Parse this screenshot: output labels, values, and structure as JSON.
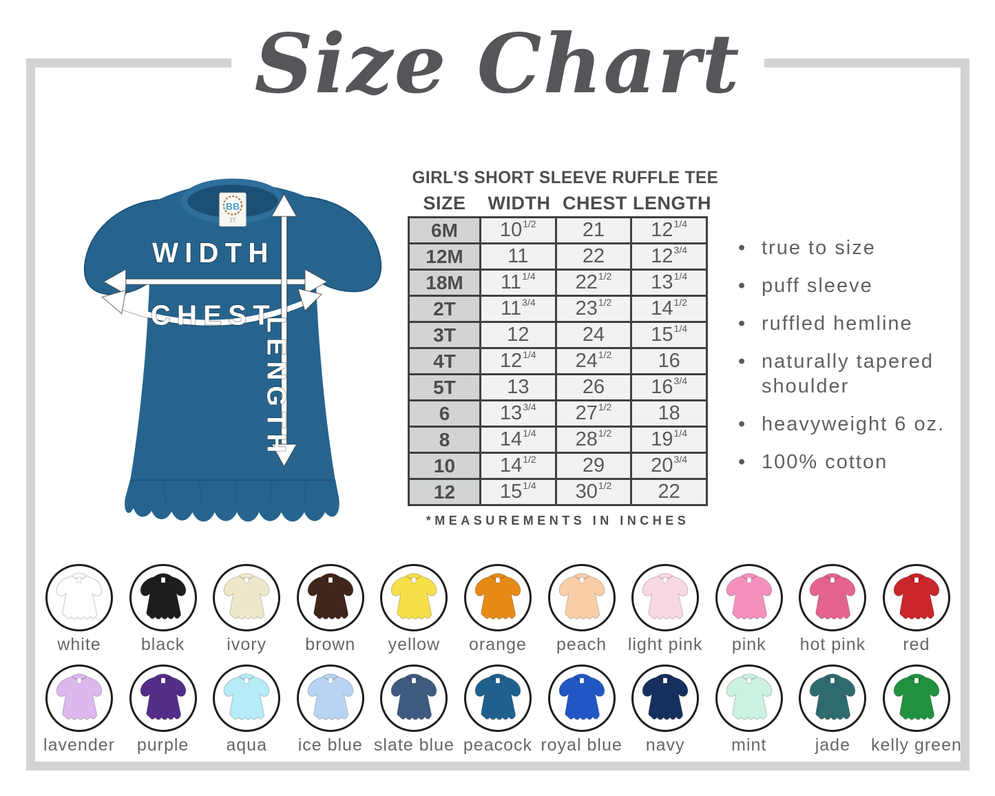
{
  "title": "Size Chart",
  "product": {
    "name": "GIRL'S SHORT SLEEVE RUFFLE TEE",
    "measurement_note": "*MEASUREMENTS IN INCHES",
    "diagram_labels": {
      "width": "WIDTH",
      "chest": "CHEST",
      "length": "LENGTH"
    },
    "neck_tag": {
      "logo": "BB",
      "size_label": "2T"
    }
  },
  "chart_data": {
    "type": "table",
    "title": "GIRL'S SHORT SLEEVE RUFFLE TEE",
    "columns": [
      "SIZE",
      "WIDTH",
      "CHEST",
      "LENGTH"
    ],
    "units": "inches",
    "rows": [
      {
        "size": "6M",
        "width": "10 1/2",
        "chest": "21",
        "length": "12 1/4"
      },
      {
        "size": "12M",
        "width": "11",
        "chest": "22",
        "length": "12 3/4"
      },
      {
        "size": "18M",
        "width": "11 1/4",
        "chest": "22 1/2",
        "length": "13 1/4"
      },
      {
        "size": "2T",
        "width": "11 3/4",
        "chest": "23 1/2",
        "length": "14 1/2"
      },
      {
        "size": "3T",
        "width": "12",
        "chest": "24",
        "length": "15 1/4"
      },
      {
        "size": "4T",
        "width": "12 1/4",
        "chest": "24 1/2",
        "length": "16"
      },
      {
        "size": "5T",
        "width": "13",
        "chest": "26",
        "length": "16 3/4"
      },
      {
        "size": "6",
        "width": "13 3/4",
        "chest": "27 1/2",
        "length": "18"
      },
      {
        "size": "8",
        "width": "14 1/4",
        "chest": "28 1/2",
        "length": "19 1/4"
      },
      {
        "size": "10",
        "width": "14 1/2",
        "chest": "29",
        "length": "20 3/4"
      },
      {
        "size": "12",
        "width": "15 1/4",
        "chest": "30 1/2",
        "length": "22"
      }
    ]
  },
  "features": [
    "true to size",
    "puff sleeve",
    "ruffled hemline",
    "naturally tapered shoulder",
    "heavyweight 6 oz.",
    "100% cotton"
  ],
  "swatches": {
    "row1": [
      {
        "name": "white",
        "hex": "#ffffff"
      },
      {
        "name": "black",
        "hex": "#1d1d1f"
      },
      {
        "name": "ivory",
        "hex": "#efe9cc"
      },
      {
        "name": "brown",
        "hex": "#40251b"
      },
      {
        "name": "yellow",
        "hex": "#f6e049"
      },
      {
        "name": "orange",
        "hex": "#e68a15"
      },
      {
        "name": "peach",
        "hex": "#f9cfa9"
      },
      {
        "name": "light pink",
        "hex": "#fad7e5"
      },
      {
        "name": "pink",
        "hex": "#f590bd"
      },
      {
        "name": "hot pink",
        "hex": "#e4638f"
      },
      {
        "name": "red",
        "hex": "#c9252b"
      }
    ],
    "row2": [
      {
        "name": "lavender",
        "hex": "#dcb8ee"
      },
      {
        "name": "purple",
        "hex": "#532d87"
      },
      {
        "name": "aqua",
        "hex": "#b5ecf7"
      },
      {
        "name": "ice blue",
        "hex": "#b8d4f2"
      },
      {
        "name": "slate blue",
        "hex": "#3e5a7e"
      },
      {
        "name": "peacock",
        "hex": "#20608d"
      },
      {
        "name": "royal blue",
        "hex": "#2157c4"
      },
      {
        "name": "navy",
        "hex": "#16305e"
      },
      {
        "name": "mint",
        "hex": "#ccf2e2"
      },
      {
        "name": "jade",
        "hex": "#2e6b6e"
      },
      {
        "name": "kelly green",
        "hex": "#20913f"
      }
    ]
  },
  "theme": {
    "shirt_blue": "#26648e",
    "shirt_shadow": "#1c4f74",
    "frame_gray": "#d2d3d5",
    "text_dark": "#4c4d4f",
    "text_gray": "#606164",
    "table_border": "#414042",
    "size_col_bg": "#d1d3d4",
    "cell_bg": "#f1f2f2"
  }
}
